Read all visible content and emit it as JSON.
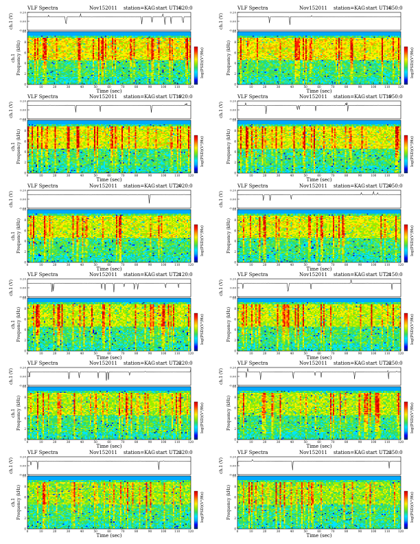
{
  "chart_data": {
    "type": "heatmap",
    "shared": {
      "title_left": "VLF Spectra",
      "date": "Nov152011",
      "station": "station=KAG",
      "start_label": "start UT =",
      "amp_ylabel": "ch.1 (V)",
      "amp_ticks": [
        "0.20",
        "0.00",
        "-0.20"
      ],
      "amp_ylim": [
        -0.2,
        0.2
      ],
      "freq_ylabel": "Frequency (kHz)",
      "freq_ylabel_left_prefix": "ch.1",
      "freq_ticks": [
        0,
        2,
        4,
        6,
        8,
        10
      ],
      "freq_ylim": [
        0,
        10
      ],
      "xlabel": "Time (sec)",
      "x_ticks": [
        0,
        10,
        20,
        30,
        40,
        50,
        60,
        70,
        80,
        90,
        100,
        110,
        120
      ],
      "xlim": [
        0,
        120
      ],
      "colorbar_label": "log(PSD)(V²/Hz)",
      "colorbar_colors": [
        "#08306b",
        "#0000ff",
        "#00aaff",
        "#00e5ff",
        "#33dd66",
        "#99ee00",
        "#ffee00",
        "#ff9900",
        "#ff2200",
        "#cc0000"
      ],
      "grid": false
    },
    "panels": [
      {
        "start_ut": "1820:0"
      },
      {
        "start_ut": "1850:0"
      },
      {
        "start_ut": "1920:0"
      },
      {
        "start_ut": "1950:0"
      },
      {
        "start_ut": "2020:0"
      },
      {
        "start_ut": "2050:0"
      },
      {
        "start_ut": "2120:0"
      },
      {
        "start_ut": "2150:0"
      },
      {
        "start_ut": "2220:0"
      },
      {
        "start_ut": "2250:0"
      },
      {
        "start_ut": "2320:0"
      },
      {
        "start_ut": "2350:0"
      }
    ]
  }
}
